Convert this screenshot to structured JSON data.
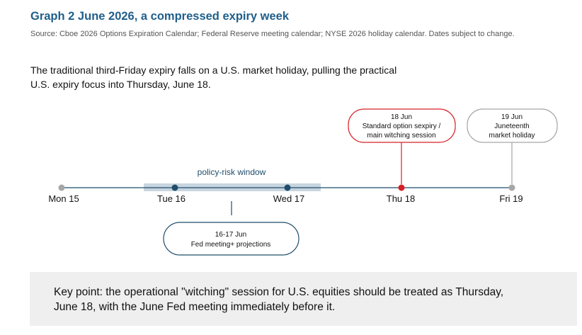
{
  "title": "Graph 2 June 2026, a compressed expiry week",
  "source": "Source: Cboe 2026 Options Expiration Calendar; Federal Reserve meeting calendar; NYSE 2026 holiday calendar. Dates subject to change.",
  "intro": {
    "line1": "The traditional third-Friday expiry falls on a U.S. market holiday, pulling the practical",
    "line2": "U.S. expiry focus into Thursday, June 18."
  },
  "timeline": {
    "days": [
      {
        "label": "Mon 15",
        "marker": "gray"
      },
      {
        "label": "Tue 16",
        "marker": "navy"
      },
      {
        "label": "Wed 17",
        "marker": "navy"
      },
      {
        "label": "Thu 18",
        "marker": "red"
      },
      {
        "label": "Fri 19",
        "marker": "gray"
      }
    ],
    "window_label": "policy-risk window",
    "callouts": {
      "fed": {
        "line1": "16-17 Jun",
        "line2": "Fed meeting+ projections"
      },
      "expiry": {
        "line1": "18 Jun",
        "line2": "Standard option sexpiry /",
        "line3": "main witching session"
      },
      "holiday": {
        "line1": "19 Jun",
        "line2": "Juneteenth",
        "line3": "market holiday"
      }
    }
  },
  "keypoint": {
    "line1": "Key point: the operational \"witching\" session for U.S. equities should be treated as Thursday,",
    "line2": "June 18, with the June Fed meeting immediately before it."
  },
  "colors": {
    "title": "#1f5f8b",
    "axis": "#1f4e6b",
    "navy": "#1f4e6b",
    "red": "#d62027",
    "gray": "#a6a6a6",
    "window_band": "#c7d5e0"
  }
}
